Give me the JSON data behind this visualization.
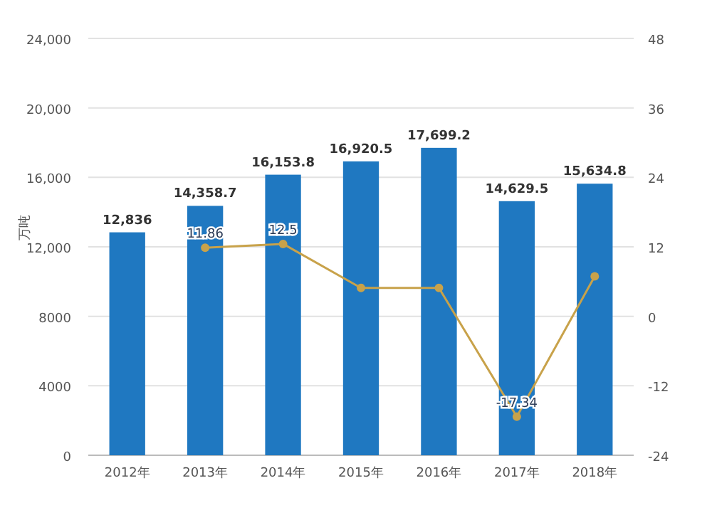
{
  "chart_data": {
    "type": "bar",
    "ylabel": "万吨",
    "categories": [
      "2012年",
      "2013年",
      "2014年",
      "2015年",
      "2016年",
      "2017年",
      "2018年"
    ],
    "series": [
      {
        "color": "#1f78c1",
        "values": [
          12836,
          14358.7,
          16153.8,
          16920.5,
          17699.2,
          14629.5,
          15634.8
        ],
        "value_labels": [
          "12,836",
          "14,358.7",
          "16,153.8",
          "16,920.5",
          "17,699.2",
          "14,629.5",
          "15,634.8"
        ]
      },
      {
        "type": "line",
        "axis": "y2",
        "color": "#c8a24a",
        "marker": "circle",
        "values": [
          null,
          11.86,
          12.5,
          4.9,
          4.9,
          -17.34,
          6.9
        ],
        "value_labels": [
          null,
          "11.86",
          "12.5",
          null,
          null,
          "-17.34",
          null
        ]
      }
    ],
    "ylim": [
      0,
      24000
    ],
    "yticks": [
      0,
      4000,
      8000,
      {
        "value": 12000,
        "label": "12,000"
      },
      {
        "value": 16000,
        "label": "16,000"
      },
      {
        "value": 20000,
        "label": "20,000"
      },
      {
        "value": 24000,
        "label": "24,000"
      }
    ],
    "y2lim": [
      -24,
      48
    ],
    "y2ticks": [
      -24,
      -12,
      0,
      12,
      24,
      36,
      48
    ],
    "grid": "y"
  }
}
